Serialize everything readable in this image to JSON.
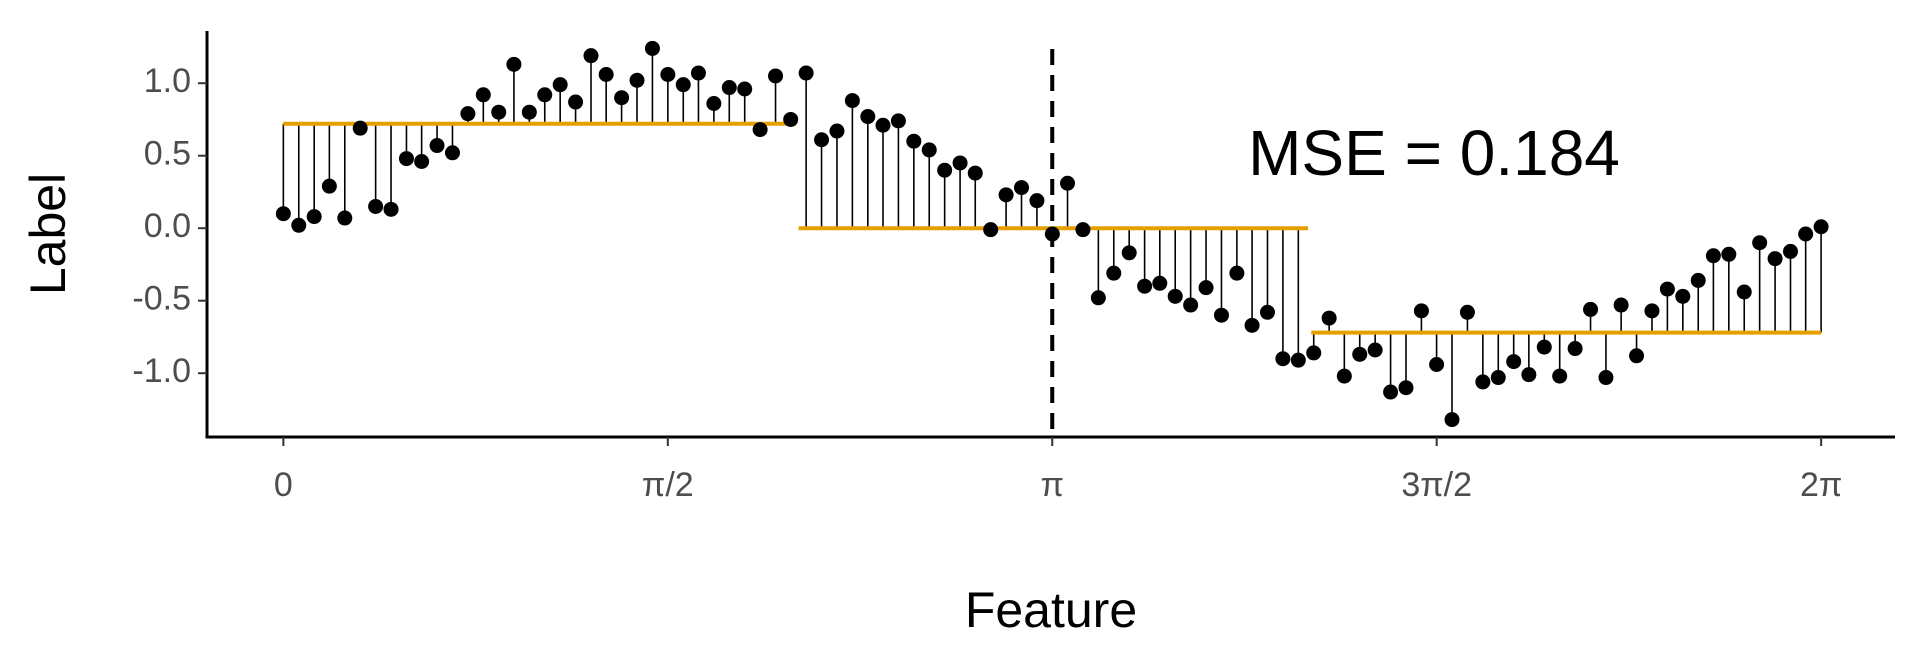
{
  "chart_data": {
    "type": "scatter",
    "x_label": "Feature",
    "y_label": "Label",
    "annotation": "MSE = 0.184",
    "series": [
      {
        "name": "observations",
        "color": "#000000",
        "x": [
          0,
          0.063,
          0.126,
          0.188,
          0.251,
          0.314,
          0.377,
          0.44,
          0.503,
          0.565,
          0.628,
          0.691,
          0.754,
          0.817,
          0.88,
          0.942,
          1.005,
          1.068,
          1.131,
          1.194,
          1.257,
          1.319,
          1.382,
          1.445,
          1.508,
          1.571,
          1.634,
          1.696,
          1.759,
          1.822,
          1.885,
          1.948,
          2.011,
          2.073,
          2.136,
          2.199,
          2.262,
          2.325,
          2.388,
          2.45,
          2.513,
          2.576,
          2.639,
          2.702,
          2.765,
          2.827,
          2.89,
          2.953,
          3.016,
          3.079,
          3.142,
          3.204,
          3.267,
          3.33,
          3.393,
          3.456,
          3.519,
          3.581,
          3.644,
          3.707,
          3.77,
          3.833,
          3.896,
          3.958,
          4.021,
          4.084,
          4.147,
          4.21,
          4.273,
          4.335,
          4.398,
          4.461,
          4.524,
          4.587,
          4.65,
          4.712,
          4.775,
          4.838,
          4.901,
          4.964,
          5.027,
          5.089,
          5.152,
          5.215,
          5.278,
          5.341,
          5.404,
          5.466,
          5.529,
          5.592,
          5.655,
          5.718,
          5.781,
          5.843,
          5.906,
          5.969,
          6.032,
          6.095,
          6.158,
          6.22,
          6.283
        ],
        "values": [
          0.1,
          0.02,
          0.08,
          0.29,
          0.07,
          0.69,
          0.15,
          0.13,
          0.48,
          0.46,
          0.57,
          0.52,
          0.79,
          0.92,
          0.8,
          1.13,
          0.8,
          0.92,
          0.99,
          0.87,
          1.19,
          1.06,
          0.9,
          1.02,
          1.24,
          1.06,
          0.99,
          1.07,
          0.86,
          0.97,
          0.96,
          0.68,
          1.05,
          0.75,
          1.07,
          0.61,
          0.67,
          0.88,
          0.77,
          0.71,
          0.74,
          0.6,
          0.54,
          0.4,
          0.45,
          0.38,
          -0.01,
          0.23,
          0.28,
          0.19,
          -0.04,
          0.31,
          -0.01,
          -0.48,
          -0.31,
          -0.17,
          -0.4,
          -0.38,
          -0.47,
          -0.53,
          -0.41,
          -0.6,
          -0.31,
          -0.67,
          -0.58,
          -0.9,
          -0.91,
          -0.86,
          -0.62,
          -1.02,
          -0.87,
          -0.84,
          -1.13,
          -1.1,
          -0.57,
          -0.94,
          -1.32,
          -0.58,
          -1.06,
          -1.03,
          -0.92,
          -1.01,
          -0.82,
          -1.02,
          -0.83,
          -0.56,
          -1.03,
          -0.53,
          -0.88,
          -0.57,
          -0.42,
          -0.47,
          -0.36,
          -0.19,
          -0.18,
          -0.44,
          -0.1,
          -0.21,
          -0.16,
          -0.04,
          0.01
        ]
      }
    ],
    "fit": [
      {
        "x0": 0,
        "x1": 2.094,
        "value": 0.72
      },
      {
        "x0": 2.105,
        "x1": 4.187,
        "value": 0.0
      },
      {
        "x0": 4.2,
        "x1": 6.283,
        "value": -0.72
      }
    ],
    "fit_color": "#E69F00",
    "vline": 3.1416,
    "xlim": [
      -0.312,
      6.585
    ],
    "ylim": [
      -1.44,
      1.36
    ],
    "xticks": [
      0,
      {
        "value": 1.5708,
        "label": "π/2"
      },
      {
        "value": 3.1416,
        "label": "π"
      },
      {
        "value": 4.7124,
        "label": "3π/2"
      },
      {
        "value": 6.2832,
        "label": "2π"
      }
    ],
    "yticks": [
      {
        "value": 1,
        "label": "1.0"
      },
      0.5,
      {
        "value": 0,
        "label": "0.0"
      },
      -0.5,
      {
        "value": -1,
        "label": "-1.0"
      }
    ],
    "grid": false
  }
}
